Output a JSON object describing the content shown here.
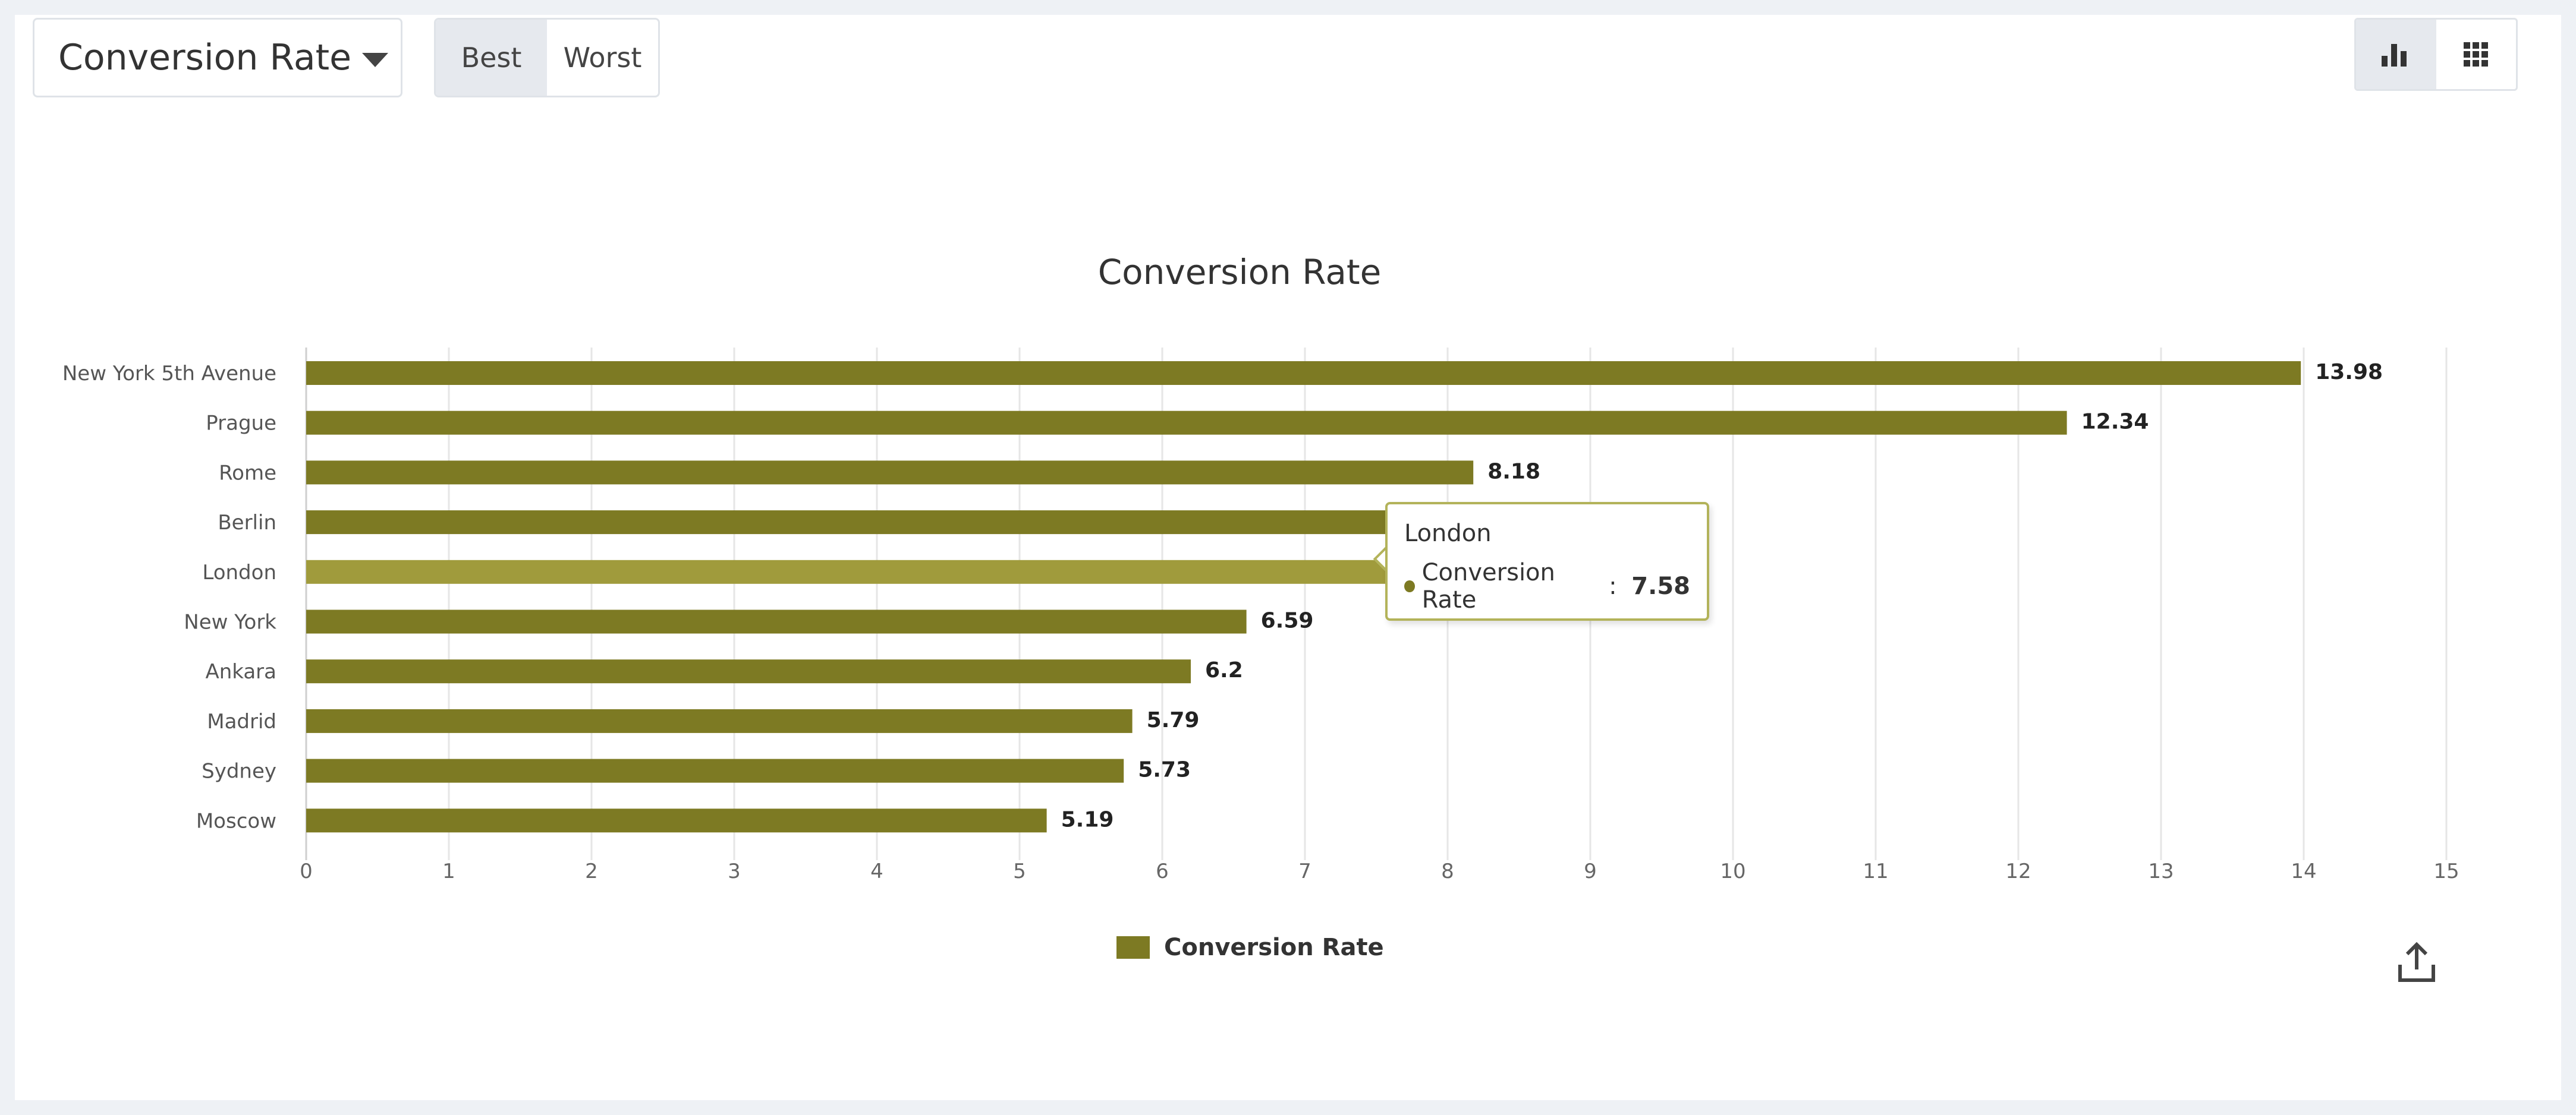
{
  "toolbar": {
    "metric_label": "Conversion Rate",
    "segment_best": "Best",
    "segment_worst": "Worst",
    "active_segment": "Best",
    "view_icons": [
      "bar-chart-icon",
      "grid-icon"
    ],
    "active_view": "bar-chart-icon"
  },
  "colors": {
    "bar": "#7d7a23",
    "bar_highlight": "#a09b3c",
    "grid": "#e6e6e6"
  },
  "tooltip": {
    "title": "London",
    "series": "Conversion Rate",
    "separator": " : ",
    "value": "7.58"
  },
  "legend": {
    "label": "Conversion Rate"
  },
  "export_icon": "export-icon",
  "chart_data": {
    "type": "bar",
    "orientation": "horizontal",
    "title": "Conversion Rate",
    "categories": [
      "New York 5th Avenue",
      "Prague",
      "Rome",
      "Berlin",
      "London",
      "New York",
      "Ankara",
      "Madrid",
      "Sydney",
      "Moscow"
    ],
    "values": [
      13.98,
      12.34,
      8.18,
      7.72,
      7.58,
      6.59,
      6.2,
      5.79,
      5.73,
      5.19
    ],
    "data_labels": [
      "13.98",
      "12.34",
      "8.18",
      "7.72",
      "",
      "6.59",
      "6.2",
      "5.79",
      "5.73",
      "5.19"
    ],
    "x_ticks": [
      0,
      1,
      2,
      3,
      4,
      5,
      6,
      7,
      8,
      9,
      10,
      11,
      12,
      13,
      14,
      15
    ],
    "xlim": [
      0,
      15
    ],
    "grid": true,
    "legend_position": "bottom-center",
    "highlighted": "London"
  }
}
